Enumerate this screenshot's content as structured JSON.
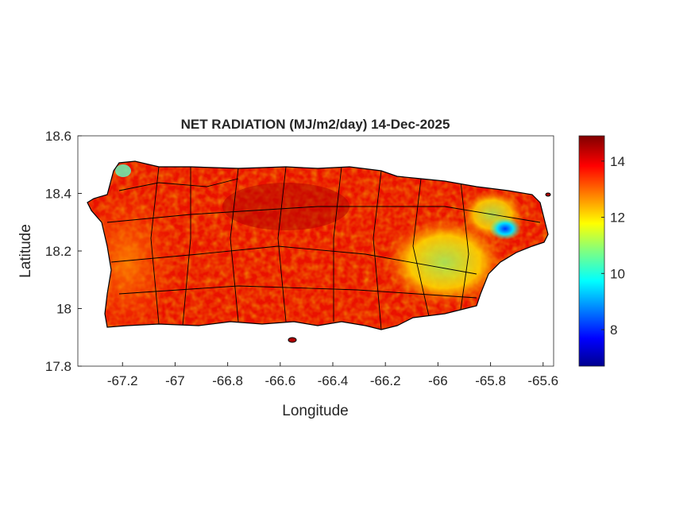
{
  "chart_data": {
    "type": "heatmap",
    "title": "NET RADIATION (MJ/m2/day) 14-Dec-2025",
    "xlabel": "Longitude",
    "ylabel": "Latitude",
    "xlim": [
      -67.37,
      -65.56
    ],
    "ylim": [
      17.8,
      18.6
    ],
    "xticks": [
      -67.2,
      -67,
      -66.8,
      -66.6,
      -66.4,
      -66.2,
      -66,
      -65.8,
      -65.6
    ],
    "xtick_labels": [
      "-67.2",
      "-67",
      "-66.8",
      "-66.6",
      "-66.4",
      "-66.2",
      "-66",
      "-65.8",
      "-65.6"
    ],
    "yticks": [
      17.8,
      18,
      18.2,
      18.4,
      18.6
    ],
    "ytick_labels": [
      "17.8",
      "18",
      "18.2",
      "18.4",
      "18.6"
    ],
    "colormap": "jet",
    "clim": [
      6.7,
      14.9
    ],
    "colorbar_ticks": [
      8,
      10,
      12,
      14
    ],
    "colorbar_tick_labels": [
      "8",
      "10",
      "12",
      "14"
    ],
    "colorbar_placement": "right",
    "grid": false,
    "overlay": "municipality boundaries (black)",
    "colors": {
      "high": "#c80000",
      "mid": "#ffff00",
      "low": "#00008f",
      "boundary": "#000000"
    }
  }
}
